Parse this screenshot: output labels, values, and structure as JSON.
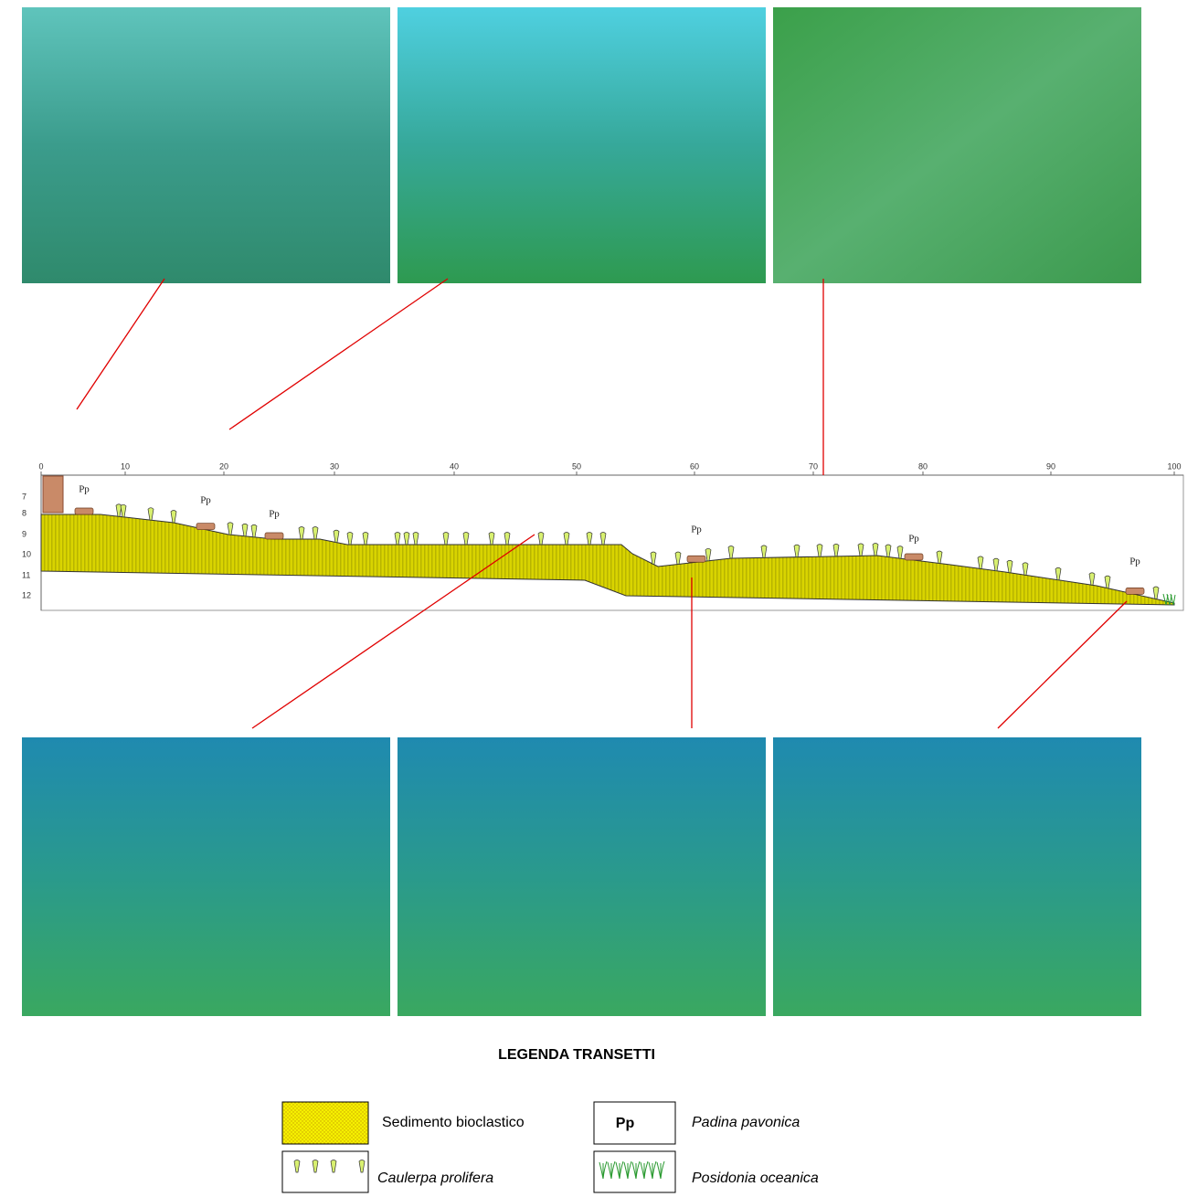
{
  "profile": {
    "x_ticks": [
      "0",
      "10",
      "20",
      "30",
      "40",
      "50",
      "60",
      "70",
      "80",
      "90",
      "100"
    ],
    "depth_ticks": [
      "7",
      "8",
      "9",
      "10",
      "11",
      "12"
    ],
    "species_labels": [
      "Pp",
      "Pp",
      "Pp",
      "Pp",
      "Pp",
      "Pp"
    ]
  },
  "legend": {
    "title": "LEGENDA TRANSETTI",
    "items": [
      {
        "symbol": null,
        "label": "Sedimento bioclastico"
      },
      {
        "symbol": "Pp",
        "label": "Padina pavonica"
      },
      {
        "symbol": null,
        "label": "Caulerpa prolifera"
      },
      {
        "symbol": null,
        "label": "Posidonia oceanica"
      }
    ]
  }
}
